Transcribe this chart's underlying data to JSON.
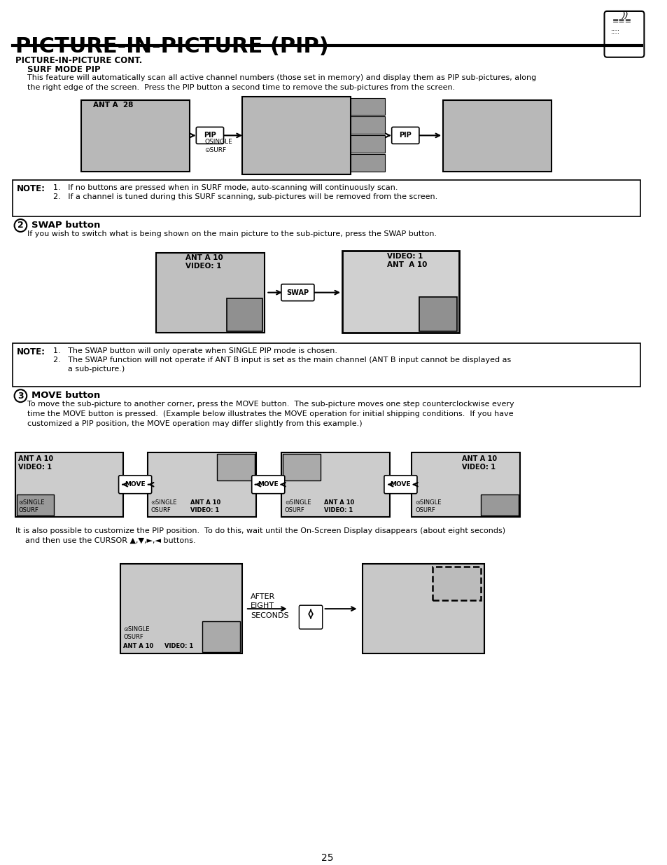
{
  "title": "PICTURE-IN-PICTURE (PIP)",
  "page_number": "25",
  "bg_color": "#ffffff",
  "text_color": "#000000",
  "section1_heading": "PICTURE-IN-PICTURE CONT.",
  "section1_sub": "SURF MODE PIP",
  "section1_body": "This feature will automatically scan all active channel numbers (those set in memory) and display them as PIP sub-pictures, along\nthe right edge of the screen.  Press the PIP button a second time to remove the sub-pictures from the screen.",
  "note1_label": "NOTE:",
  "note1_lines": [
    "1.   If no buttons are pressed when in SURF mode, auto-scanning will continuously scan.",
    "2.   If a channel is tuned during this SURF scanning, sub-pictures will be removed from the screen."
  ],
  "section2_num": "2",
  "section2_heading": "SWAP button",
  "section2_body": "If you wish to switch what is being shown on the main picture to the sub-picture, press the SWAP button.",
  "note2_label": "NOTE:",
  "note2_lines": [
    "1.   The SWAP button will only operate when SINGLE PIP mode is chosen.",
    "2.   The SWAP function will not operate if ANT B input is set as the main channel (ANT B input cannot be displayed as",
    "      a sub-picture.)"
  ],
  "section3_num": "3",
  "section3_heading": "MOVE button",
  "section3_body": "To move the sub-picture to another corner, press the MOVE button.  The sub-picture moves one step counterclockwise every\ntime the MOVE button is pressed.  (Example below illustrates the MOVE operation for initial shipping conditions.  If you have\ncustomized a PIP position, the MOVE operation may differ slightly from this example.)",
  "section4_body": "It is also possible to customize the PIP position.  To do this, wait until the On-Screen Display disappears (about eight seconds)\n    and then use the CURSOR ▲,▼,►,◄ buttons."
}
